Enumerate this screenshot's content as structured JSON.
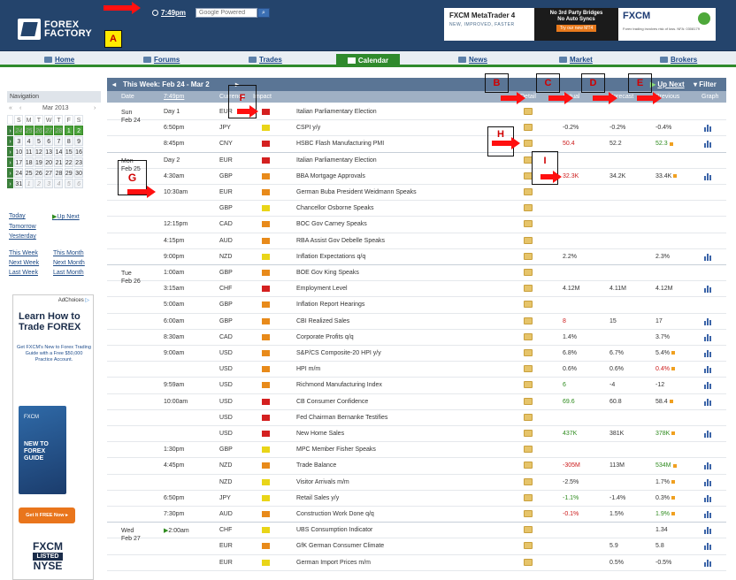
{
  "header": {
    "logo_line1": "FOREX",
    "logo_line2": "FACTORY",
    "clock": "7:49pm",
    "search_placeholder": "Google Powered",
    "ad1_title": "FXCM MetaTrader 4",
    "ad1_sub": "NEW, IMPROVED, FASTER",
    "ad2_line1": "No 3rd Party Bridges",
    "ad2_line2": "No Auto Syncs",
    "ad2_btn": "Try our new MT4",
    "ad3_brand": "FXCM",
    "ad3_sub": "Forex trading involves risk of loss. NFA: 0308179"
  },
  "nav": {
    "items": [
      "Home",
      "Forums",
      "Trades",
      "Calendar",
      "News",
      "Market",
      "Brokers"
    ]
  },
  "sidebar": {
    "title": "Navigation",
    "month": "Mar 2013",
    "prev_year": "«",
    "prev_month": "‹",
    "next_month": "›",
    "weekdays": [
      "S",
      "M",
      "T",
      "W",
      "T",
      "F",
      "S"
    ],
    "weeks": [
      [
        "24",
        "25",
        "26",
        "27",
        "28",
        "1",
        "2"
      ],
      [
        "3",
        "4",
        "5",
        "6",
        "7",
        "8",
        "9"
      ],
      [
        "10",
        "11",
        "12",
        "13",
        "14",
        "15",
        "16"
      ],
      [
        "17",
        "18",
        "19",
        "20",
        "21",
        "22",
        "23"
      ],
      [
        "24",
        "25",
        "26",
        "27",
        "28",
        "29",
        "30"
      ],
      [
        "31",
        "1",
        "2",
        "3",
        "4",
        "5",
        "6"
      ]
    ],
    "links": {
      "today": "Today",
      "up_next": "Up Next",
      "tomorrow": "Tomorrow",
      "yesterday": "Yesterday",
      "this_week": "This Week",
      "this_month": "This Month",
      "next_week": "Next Week",
      "next_month": "Next Month",
      "last_week": "Last Week",
      "last_month": "Last Month"
    }
  },
  "sidead": {
    "choices": "AdChoices",
    "title": "Learn How to Trade FOREX",
    "text": "Get FXCM's New to Forex Trading Guide with a Free $50,000 Practice Account.",
    "book_brand": "FXCM",
    "book_title": "NEW TO FOREX GUIDE",
    "button": "Get It FREE Now",
    "logo": "FXCM",
    "listed": "LISTED",
    "nyse": "NYSE"
  },
  "calendar": {
    "week_title": "This Week: Feb 24 - Mar 2",
    "up_next": "Up Next",
    "filter": "Filter",
    "columns": {
      "date": "Date",
      "time": "7:49pm",
      "currency": "Currency",
      "impact": "Impact",
      "detail": "Detail",
      "actual": "Actual",
      "forecast": "Forecast",
      "previous": "Previous",
      "graph": "Graph"
    },
    "rows": [
      {
        "date": "Sun",
        "date2": "Feb 24",
        "time": "Day 1",
        "cur": "EUR",
        "imp": "red",
        "evt": "Italian Parliamentary Election",
        "act": "",
        "fc": "",
        "prev": "",
        "graph": false
      },
      {
        "date": "",
        "date2": "",
        "time": "6:50pm",
        "cur": "JPY",
        "imp": "yel",
        "evt": "CSPI y/y",
        "act": "-0.2%",
        "fc": "-0.2%",
        "prev": "-0.4%",
        "graph": true
      },
      {
        "date": "",
        "date2": "",
        "time": "8:45pm",
        "cur": "CNY",
        "imp": "red",
        "evt": "HSBC Flash Manufacturing PMI",
        "act": "50.4",
        "actc": "red",
        "fc": "52.2",
        "prev": "52.3",
        "prevc": "green",
        "prevrev": true,
        "graph": true
      },
      {
        "date": "Mon",
        "date2": "Feb 25",
        "time": "Day 2",
        "cur": "EUR",
        "imp": "red",
        "evt": "Italian Parliamentary Election",
        "act": "",
        "fc": "",
        "prev": "",
        "graph": false
      },
      {
        "date": "",
        "date2": "",
        "time": "4:30am",
        "cur": "GBP",
        "imp": "or",
        "evt": "BBA Mortgage Approvals",
        "act": "32.3K",
        "actc": "red",
        "fc": "34.2K",
        "prev": "33.4K",
        "prevrev": true,
        "graph": true
      },
      {
        "date": "",
        "date2": "",
        "time": "10:30am",
        "cur": "EUR",
        "imp": "or",
        "evt": "German Buba President Weidmann Speaks",
        "act": "",
        "fc": "",
        "prev": "",
        "graph": false
      },
      {
        "date": "",
        "date2": "",
        "time": "",
        "cur": "GBP",
        "imp": "yel",
        "evt": "Chancellor Osborne Speaks",
        "act": "",
        "fc": "",
        "prev": "",
        "graph": false
      },
      {
        "date": "",
        "date2": "",
        "time": "12:15pm",
        "cur": "CAD",
        "imp": "or",
        "evt": "BOC Gov Carney Speaks",
        "act": "",
        "fc": "",
        "prev": "",
        "graph": false
      },
      {
        "date": "",
        "date2": "",
        "time": "4:15pm",
        "cur": "AUD",
        "imp": "or",
        "evt": "RBA Assist Gov Debelle Speaks",
        "act": "",
        "fc": "",
        "prev": "",
        "graph": false
      },
      {
        "date": "",
        "date2": "",
        "time": "9:00pm",
        "cur": "NZD",
        "imp": "yel",
        "evt": "Inflation Expectations q/q",
        "act": "2.2%",
        "fc": "",
        "prev": "2.3%",
        "graph": true
      },
      {
        "date": "Tue",
        "date2": "Feb 26",
        "time": "1:00am",
        "cur": "GBP",
        "imp": "or",
        "evt": "BOE Gov King Speaks",
        "act": "",
        "fc": "",
        "prev": "",
        "graph": false
      },
      {
        "date": "",
        "date2": "",
        "time": "3:15am",
        "cur": "CHF",
        "imp": "red",
        "evt": "Employment Level",
        "act": "4.12M",
        "fc": "4.11M",
        "prev": "4.12M",
        "graph": true
      },
      {
        "date": "",
        "date2": "",
        "time": "5:00am",
        "cur": "GBP",
        "imp": "or",
        "evt": "Inflation Report Hearings",
        "act": "",
        "fc": "",
        "prev": "",
        "graph": false
      },
      {
        "date": "",
        "date2": "",
        "time": "6:00am",
        "cur": "GBP",
        "imp": "or",
        "evt": "CBI Realized Sales",
        "act": "8",
        "actc": "red",
        "fc": "15",
        "prev": "17",
        "graph": true
      },
      {
        "date": "",
        "date2": "",
        "time": "8:30am",
        "cur": "CAD",
        "imp": "or",
        "evt": "Corporate Profits q/q",
        "act": "1.4%",
        "fc": "",
        "prev": "3.7%",
        "graph": true
      },
      {
        "date": "",
        "date2": "",
        "time": "9:00am",
        "cur": "USD",
        "imp": "or",
        "evt": "S&P/CS Composite-20 HPI y/y",
        "act": "6.8%",
        "fc": "6.7%",
        "prev": "5.4%",
        "prevrev": true,
        "graph": true
      },
      {
        "date": "",
        "date2": "",
        "time": "",
        "cur": "USD",
        "imp": "or",
        "evt": "HPI m/m",
        "act": "0.6%",
        "fc": "0.6%",
        "prev": "0.4%",
        "prevc": "red",
        "prevrev": true,
        "graph": true
      },
      {
        "date": "",
        "date2": "",
        "time": "9:59am",
        "cur": "USD",
        "imp": "or",
        "evt": "Richmond Manufacturing Index",
        "act": "6",
        "actc": "green",
        "fc": "-4",
        "prev": "-12",
        "graph": true
      },
      {
        "date": "",
        "date2": "",
        "time": "10:00am",
        "cur": "USD",
        "imp": "red",
        "evt": "CB Consumer Confidence",
        "act": "69.6",
        "actc": "green",
        "fc": "60.8",
        "prev": "58.4",
        "prevrev": true,
        "graph": true
      },
      {
        "date": "",
        "date2": "",
        "time": "",
        "cur": "USD",
        "imp": "red",
        "evt": "Fed Chairman Bernanke Testifies",
        "act": "",
        "fc": "",
        "prev": "",
        "graph": false
      },
      {
        "date": "",
        "date2": "",
        "time": "",
        "cur": "USD",
        "imp": "red",
        "evt": "New Home Sales",
        "act": "437K",
        "actc": "green",
        "fc": "381K",
        "prev": "378K",
        "prevc": "green",
        "prevrev": true,
        "graph": true
      },
      {
        "date": "",
        "date2": "",
        "time": "1:30pm",
        "cur": "GBP",
        "imp": "yel",
        "evt": "MPC Member Fisher Speaks",
        "act": "",
        "fc": "",
        "prev": "",
        "graph": false
      },
      {
        "date": "",
        "date2": "",
        "time": "4:45pm",
        "cur": "NZD",
        "imp": "or",
        "evt": "Trade Balance",
        "act": "-305M",
        "actc": "red",
        "fc": "113M",
        "prev": "534M",
        "prevc": "green",
        "prevrev": true,
        "graph": true
      },
      {
        "date": "",
        "date2": "",
        "time": "",
        "cur": "NZD",
        "imp": "yel",
        "evt": "Visitor Arrivals m/m",
        "act": "-2.5%",
        "fc": "",
        "prev": "1.7%",
        "prevrev": true,
        "graph": true
      },
      {
        "date": "",
        "date2": "",
        "time": "6:50pm",
        "cur": "JPY",
        "imp": "yel",
        "evt": "Retail Sales y/y",
        "act": "-1.1%",
        "actc": "green",
        "fc": "-1.4%",
        "prev": "0.3%",
        "prevrev": true,
        "graph": true
      },
      {
        "date": "",
        "date2": "",
        "time": "7:30pm",
        "cur": "AUD",
        "imp": "or",
        "evt": "Construction Work Done q/q",
        "act": "-0.1%",
        "actc": "red",
        "fc": "1.5%",
        "prev": "1.9%",
        "prevc": "green",
        "prevrev": true,
        "graph": true
      },
      {
        "date": "Wed",
        "date2": "Feb 27",
        "time": "2:00am",
        "timeup": true,
        "cur": "CHF",
        "imp": "yel",
        "evt": "UBS Consumption Indicator",
        "act": "",
        "fc": "",
        "prev": "1.34",
        "graph": true
      },
      {
        "date": "",
        "date2": "",
        "time": "",
        "cur": "EUR",
        "imp": "or",
        "evt": "GfK German Consumer Climate",
        "act": "",
        "fc": "5.9",
        "prev": "5.8",
        "graph": true
      },
      {
        "date": "",
        "date2": "",
        "time": "",
        "cur": "EUR",
        "imp": "yel",
        "evt": "German Import Prices m/m",
        "act": "",
        "fc": "0.5%",
        "prev": "-0.5%",
        "graph": true
      }
    ]
  },
  "annotations": {
    "A": "A",
    "B": "B",
    "C": "C",
    "D": "D",
    "E": "E",
    "F": "F",
    "G": "G",
    "H": "H",
    "I": "I"
  }
}
